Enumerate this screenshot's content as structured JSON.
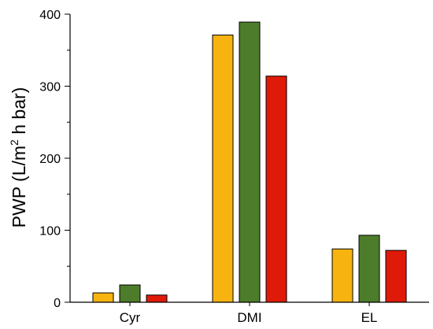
{
  "chart_data": {
    "type": "bar",
    "categories": [
      "Cyr",
      "DMI",
      "EL"
    ],
    "series": [
      {
        "values": [
          13,
          371,
          74
        ],
        "color": "#f7b30f"
      },
      {
        "values": [
          24,
          389,
          93
        ],
        "color": "#4d7d2a"
      },
      {
        "values": [
          10,
          314,
          72
        ],
        "color": "#e01a08"
      }
    ],
    "ylabel_main": "PWP (L/m",
    "ylabel_sup": "2",
    "ylabel_tail": " h bar)",
    "ylim": [
      0,
      400
    ],
    "yticks": [
      0,
      100,
      200,
      300,
      400
    ],
    "grid": false
  }
}
